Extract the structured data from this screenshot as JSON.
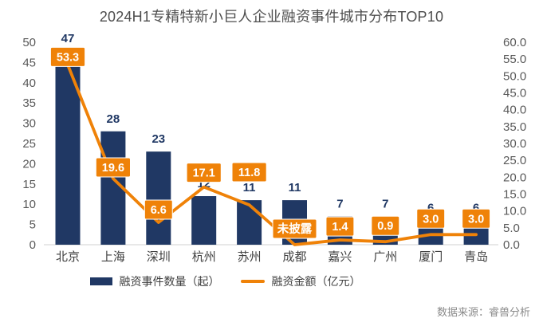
{
  "title": "2024H1专精特新小巨人企业融资事件城市分布TOP10",
  "source": "数据来源：睿兽分析",
  "colors": {
    "bar": "#203864",
    "line": "#ef8208",
    "label_box": "#ef8208",
    "label_text": "#ffffff",
    "bar_value_label": "#203864",
    "axis_text": "#595959",
    "category_text": "#404040",
    "title_text": "#4d4d4d",
    "legend_text": "#3f3f3f",
    "source_text": "#8a8a8a",
    "axis_line": "#d9d9d9"
  },
  "chart_data": {
    "type": "bar+line",
    "title": "2024H1专精特新小巨人企业融资事件城市分布TOP10",
    "categories": [
      "北京",
      "上海",
      "深圳",
      "杭州",
      "苏州",
      "成都",
      "嘉兴",
      "广州",
      "厦门",
      "青岛"
    ],
    "series": [
      {
        "name": "融资事件数量（起）",
        "type": "bar",
        "axis": "left",
        "color": "#203864",
        "values": [
          47,
          28,
          23,
          12,
          11,
          11,
          7,
          7,
          6,
          6
        ]
      },
      {
        "name": "融资金额（亿元）",
        "type": "line",
        "axis": "right",
        "color": "#ef8208",
        "values": [
          53.3,
          19.6,
          6.6,
          17.1,
          11.8,
          null,
          1.4,
          0.9,
          3.0,
          3.0
        ],
        "labels": [
          "53.3",
          "19.6",
          "6.6",
          "17.1",
          "11.8",
          "未披露",
          "1.4",
          "0.9",
          "3.0",
          "3.0"
        ]
      }
    ],
    "left_axis": {
      "min": 0,
      "max": 50,
      "step": 5,
      "tick_labels": [
        "0",
        "5",
        "10",
        "15",
        "20",
        "25",
        "30",
        "35",
        "40",
        "45",
        "50"
      ]
    },
    "right_axis": {
      "min": 0,
      "max": 60,
      "step": 5,
      "tick_labels": [
        "0.0",
        "5.0",
        "10.0",
        "15.0",
        "20.0",
        "25.0",
        "30.0",
        "35.0",
        "40.0",
        "45.0",
        "50.0",
        "55.0",
        "60.0"
      ]
    },
    "grid": false,
    "legend_position": "bottom"
  }
}
